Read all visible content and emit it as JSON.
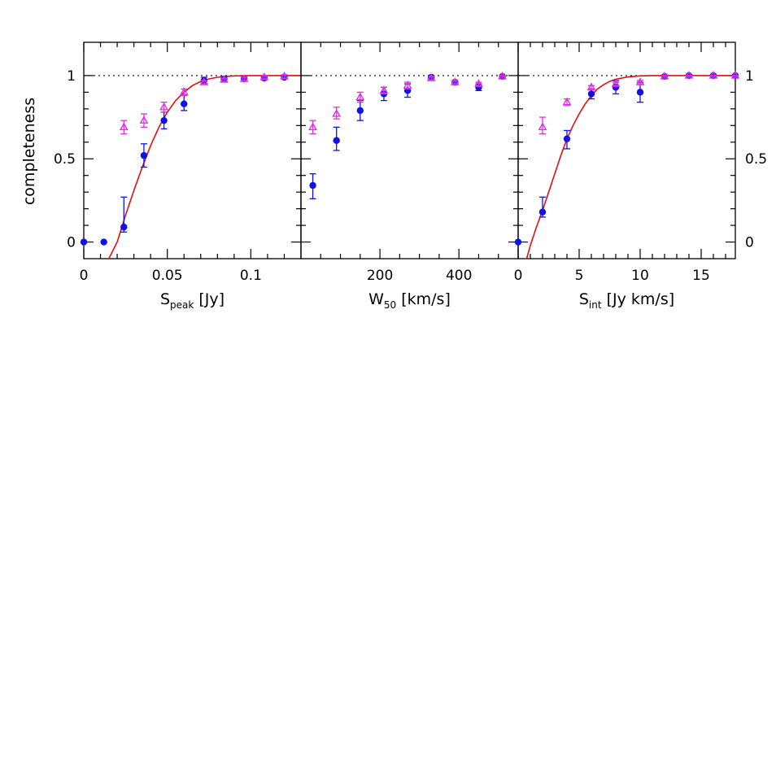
{
  "colors": {
    "series_a": "#1010e8",
    "series_b": "#e030e0",
    "fit": "#e01010",
    "axes": "#000000"
  },
  "chart_data": [
    {
      "type": "scatter",
      "xlabel": {
        "main": "S",
        "sub": "peak",
        "unit": "[Jy]"
      },
      "ylabel": "completeness",
      "xlim": [
        0,
        0.13
      ],
      "ylim": [
        -0.1,
        1.2
      ],
      "xticks_major": [
        0,
        0.05,
        0.1
      ],
      "xticks_major_labels": [
        "0",
        "0.05",
        "0.1"
      ],
      "xticks_minor": [
        0.01,
        0.02,
        0.03,
        0.04,
        0.06,
        0.07,
        0.08,
        0.09,
        0.11,
        0.12
      ],
      "yticks_major": [
        0,
        0.5,
        1
      ],
      "yticks_major_labels": [
        "0",
        "0.5",
        "1"
      ],
      "yticks_minor": [
        0.1,
        0.2,
        0.3,
        0.4,
        0.6,
        0.7,
        0.8,
        0.9
      ],
      "reference_line": 1,
      "series": [
        {
          "marker": "circle",
          "color": "#1010e8",
          "points": [
            {
              "x": 0.0,
              "y": 0.0,
              "lo": 0.0,
              "hi": 0.0
            },
            {
              "x": 0.012,
              "y": 0.0,
              "lo": 0.0,
              "hi": 0.0
            },
            {
              "x": 0.024,
              "y": 0.09,
              "lo": 0.06,
              "hi": 0.27
            },
            {
              "x": 0.036,
              "y": 0.52,
              "lo": 0.45,
              "hi": 0.59
            },
            {
              "x": 0.048,
              "y": 0.73,
              "lo": 0.68,
              "hi": 0.78
            },
            {
              "x": 0.06,
              "y": 0.83,
              "lo": 0.79,
              "hi": 0.88
            },
            {
              "x": 0.072,
              "y": 0.97,
              "lo": 0.95,
              "hi": 0.99
            },
            {
              "x": 0.084,
              "y": 0.98,
              "lo": 0.97,
              "hi": 0.99
            },
            {
              "x": 0.096,
              "y": 0.98,
              "lo": 0.97,
              "hi": 0.99
            },
            {
              "x": 0.108,
              "y": 0.985,
              "lo": 0.975,
              "hi": 0.995
            },
            {
              "x": 0.12,
              "y": 0.99,
              "lo": 0.98,
              "hi": 1.0
            }
          ]
        },
        {
          "marker": "triangle",
          "color": "#e030e0",
          "points": [
            {
              "x": 0.024,
              "y": 0.69,
              "lo": 0.65,
              "hi": 0.73
            },
            {
              "x": 0.036,
              "y": 0.73,
              "lo": 0.69,
              "hi": 0.77
            },
            {
              "x": 0.048,
              "y": 0.81,
              "lo": 0.78,
              "hi": 0.84
            },
            {
              "x": 0.06,
              "y": 0.9,
              "lo": 0.88,
              "hi": 0.92
            },
            {
              "x": 0.072,
              "y": 0.96,
              "lo": 0.95,
              "hi": 0.97
            },
            {
              "x": 0.084,
              "y": 0.975,
              "lo": 0.965,
              "hi": 0.985
            },
            {
              "x": 0.096,
              "y": 0.98,
              "lo": 0.97,
              "hi": 0.99
            },
            {
              "x": 0.108,
              "y": 0.99,
              "lo": 0.98,
              "hi": 1.0
            },
            {
              "x": 0.12,
              "y": 0.995,
              "lo": 0.985,
              "hi": 1.005
            }
          ]
        }
      ],
      "fit_curve": {
        "color": "#e01010",
        "points": [
          [
            0.015,
            -0.1
          ],
          [
            0.02,
            0.0
          ],
          [
            0.025,
            0.16
          ],
          [
            0.03,
            0.31
          ],
          [
            0.035,
            0.45
          ],
          [
            0.04,
            0.58
          ],
          [
            0.045,
            0.69
          ],
          [
            0.05,
            0.78
          ],
          [
            0.055,
            0.85
          ],
          [
            0.06,
            0.9
          ],
          [
            0.065,
            0.94
          ],
          [
            0.07,
            0.965
          ],
          [
            0.075,
            0.98
          ],
          [
            0.08,
            0.99
          ],
          [
            0.085,
            0.995
          ],
          [
            0.09,
            0.998
          ],
          [
            0.1,
            1.0
          ],
          [
            0.13,
            1.0
          ]
        ]
      }
    },
    {
      "type": "scatter",
      "xlabel": {
        "main": "W",
        "sub": "50",
        "unit": "[km/s]"
      },
      "xlim": [
        0,
        550
      ],
      "ylim": [
        -0.1,
        1.2
      ],
      "xticks_major": [
        200,
        400
      ],
      "xticks_major_labels": [
        "200",
        "400"
      ],
      "xticks_minor": [
        50,
        100,
        150,
        250,
        300,
        350,
        450,
        500
      ],
      "yticks_major": [
        0,
        0.5,
        1
      ],
      "yticks_minor": [
        0.1,
        0.2,
        0.3,
        0.4,
        0.6,
        0.7,
        0.8,
        0.9
      ],
      "reference_line": 1,
      "series": [
        {
          "marker": "circle",
          "color": "#1010e8",
          "points": [
            {
              "x": 30,
              "y": 0.34,
              "lo": 0.26,
              "hi": 0.41
            },
            {
              "x": 90,
              "y": 0.61,
              "lo": 0.55,
              "hi": 0.69
            },
            {
              "x": 150,
              "y": 0.79,
              "lo": 0.73,
              "hi": 0.85
            },
            {
              "x": 210,
              "y": 0.89,
              "lo": 0.85,
              "hi": 0.93
            },
            {
              "x": 270,
              "y": 0.91,
              "lo": 0.87,
              "hi": 0.95
            },
            {
              "x": 330,
              "y": 0.99,
              "lo": 0.98,
              "hi": 1.0
            },
            {
              "x": 390,
              "y": 0.96,
              "lo": 0.95,
              "hi": 0.97
            },
            {
              "x": 450,
              "y": 0.93,
              "lo": 0.91,
              "hi": 0.95
            },
            {
              "x": 510,
              "y": 0.995,
              "lo": 0.99,
              "hi": 1.0
            }
          ]
        },
        {
          "marker": "triangle",
          "color": "#e030e0",
          "points": [
            {
              "x": 30,
              "y": 0.69,
              "lo": 0.65,
              "hi": 0.73
            },
            {
              "x": 90,
              "y": 0.77,
              "lo": 0.74,
              "hi": 0.81
            },
            {
              "x": 150,
              "y": 0.87,
              "lo": 0.84,
              "hi": 0.9
            },
            {
              "x": 210,
              "y": 0.91,
              "lo": 0.89,
              "hi": 0.93
            },
            {
              "x": 270,
              "y": 0.94,
              "lo": 0.92,
              "hi": 0.96
            },
            {
              "x": 330,
              "y": 0.985,
              "lo": 0.975,
              "hi": 0.995
            },
            {
              "x": 390,
              "y": 0.96,
              "lo": 0.95,
              "hi": 0.97
            },
            {
              "x": 450,
              "y": 0.95,
              "lo": 0.94,
              "hi": 0.96
            },
            {
              "x": 510,
              "y": 0.995,
              "lo": 0.99,
              "hi": 1.0
            }
          ]
        }
      ]
    },
    {
      "type": "scatter",
      "xlabel": {
        "main": "S",
        "sub": "int",
        "unit": "[Jy km/s]"
      },
      "xlim": [
        0,
        17.8
      ],
      "ylim": [
        -0.1,
        1.2
      ],
      "xticks_major": [
        0,
        5,
        10,
        15
      ],
      "xticks_major_labels": [
        "0",
        "5",
        "10",
        "15"
      ],
      "xticks_minor": [
        1,
        2,
        3,
        4,
        6,
        7,
        8,
        9,
        11,
        12,
        13,
        14,
        16,
        17
      ],
      "yticks_major": [
        0,
        0.5,
        1
      ],
      "yticks_major_labels": [
        "0",
        "0.5",
        "1"
      ],
      "yticks_minor": [
        0.1,
        0.2,
        0.3,
        0.4,
        0.6,
        0.7,
        0.8,
        0.9
      ],
      "reference_line": 1,
      "series": [
        {
          "marker": "circle",
          "color": "#1010e8",
          "points": [
            {
              "x": 0.0,
              "y": 0.0,
              "lo": 0.0,
              "hi": 0.0
            },
            {
              "x": 2.0,
              "y": 0.18,
              "lo": 0.15,
              "hi": 0.27
            },
            {
              "x": 4.0,
              "y": 0.62,
              "lo": 0.56,
              "hi": 0.67
            },
            {
              "x": 6.0,
              "y": 0.89,
              "lo": 0.86,
              "hi": 0.92
            },
            {
              "x": 8.0,
              "y": 0.93,
              "lo": 0.89,
              "hi": 0.97
            },
            {
              "x": 10.0,
              "y": 0.9,
              "lo": 0.84,
              "hi": 0.96
            },
            {
              "x": 12.0,
              "y": 0.995,
              "lo": 0.985,
              "hi": 1.0
            },
            {
              "x": 14.0,
              "y": 1.0,
              "lo": 0.99,
              "hi": 1.0
            },
            {
              "x": 16.0,
              "y": 1.0,
              "lo": 0.99,
              "hi": 1.0
            },
            {
              "x": 17.8,
              "y": 1.0,
              "lo": 0.99,
              "hi": 1.0
            }
          ]
        },
        {
          "marker": "triangle",
          "color": "#e030e0",
          "points": [
            {
              "x": 2.0,
              "y": 0.69,
              "lo": 0.65,
              "hi": 0.75
            },
            {
              "x": 4.0,
              "y": 0.84,
              "lo": 0.82,
              "hi": 0.86
            },
            {
              "x": 6.0,
              "y": 0.93,
              "lo": 0.92,
              "hi": 0.94
            },
            {
              "x": 8.0,
              "y": 0.95,
              "lo": 0.94,
              "hi": 0.96
            },
            {
              "x": 10.0,
              "y": 0.96,
              "lo": 0.95,
              "hi": 0.97
            },
            {
              "x": 12.0,
              "y": 0.995,
              "lo": 0.99,
              "hi": 1.0
            },
            {
              "x": 14.0,
              "y": 1.0,
              "lo": 0.995,
              "hi": 1.0
            },
            {
              "x": 16.0,
              "y": 1.0,
              "lo": 0.995,
              "hi": 1.0
            },
            {
              "x": 17.8,
              "y": 1.0,
              "lo": 0.995,
              "hi": 1.0
            }
          ]
        }
      ],
      "fit_curve": {
        "color": "#e01010",
        "points": [
          [
            0.7,
            -0.1
          ],
          [
            1.0,
            -0.02
          ],
          [
            1.5,
            0.09
          ],
          [
            2.0,
            0.19
          ],
          [
            2.5,
            0.3
          ],
          [
            3.0,
            0.41
          ],
          [
            3.5,
            0.52
          ],
          [
            4.0,
            0.62
          ],
          [
            4.5,
            0.7
          ],
          [
            5.0,
            0.77
          ],
          [
            5.5,
            0.83
          ],
          [
            6.0,
            0.88
          ],
          [
            6.5,
            0.92
          ],
          [
            7.0,
            0.945
          ],
          [
            7.5,
            0.965
          ],
          [
            8.0,
            0.978
          ],
          [
            9.0,
            0.992
          ],
          [
            10.0,
            0.998
          ],
          [
            11.0,
            1.0
          ],
          [
            17.8,
            1.0
          ]
        ]
      }
    }
  ]
}
